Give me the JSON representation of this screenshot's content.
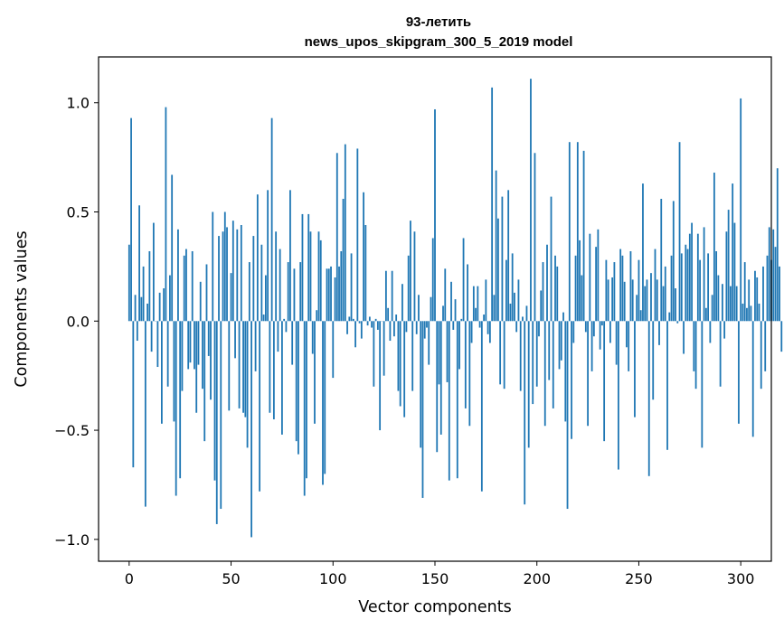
{
  "chart_data": {
    "type": "bar",
    "title_line1": "93-летить",
    "title_line2": "news_upos_skipgram_300_5_2019 model",
    "xlabel": "Vector components",
    "ylabel": "Components values",
    "xlim": [
      -15,
      315
    ],
    "ylim": [
      -1.1,
      1.21
    ],
    "xticks": [
      0,
      50,
      100,
      150,
      200,
      250,
      300
    ],
    "yticks": [
      -1.0,
      -0.5,
      0.0,
      0.5,
      1.0
    ],
    "ytick_labels": [
      "−1.0",
      "−0.5",
      "0.0",
      "0.5",
      "1.0"
    ],
    "bar_color": "#1f77b4",
    "grid": false,
    "values": [
      0.35,
      0.93,
      -0.67,
      0.12,
      -0.09,
      0.53,
      0.11,
      0.25,
      -0.85,
      0.08,
      0.32,
      -0.14,
      0.45,
      0.0,
      -0.21,
      0.13,
      -0.47,
      0.15,
      0.98,
      -0.3,
      0.21,
      0.67,
      -0.46,
      -0.8,
      0.42,
      -0.72,
      -0.32,
      0.3,
      0.33,
      -0.22,
      -0.19,
      0.32,
      -0.22,
      -0.42,
      -0.2,
      0.18,
      -0.31,
      -0.55,
      0.26,
      -0.16,
      -0.36,
      0.5,
      -0.73,
      -0.93,
      0.39,
      -0.86,
      0.41,
      0.5,
      0.43,
      -0.41,
      0.22,
      0.46,
      -0.17,
      0.42,
      -0.4,
      0.44,
      -0.42,
      -0.44,
      -0.58,
      0.27,
      -0.99,
      0.39,
      -0.23,
      0.58,
      -0.78,
      0.35,
      0.03,
      0.21,
      0.6,
      -0.42,
      0.93,
      -0.45,
      0.41,
      -0.14,
      0.33,
      -0.52,
      0.01,
      -0.05,
      0.27,
      0.6,
      -0.2,
      0.24,
      -0.55,
      -0.61,
      0.27,
      0.49,
      -0.8,
      -0.72,
      0.49,
      0.41,
      -0.15,
      -0.47,
      0.05,
      0.41,
      0.37,
      -0.75,
      -0.7,
      0.24,
      0.24,
      0.25,
      -0.26,
      0.2,
      0.77,
      0.25,
      0.32,
      0.56,
      0.81,
      -0.06,
      0.02,
      0.31,
      0.01,
      -0.12,
      0.79,
      -0.01,
      -0.08,
      0.59,
      0.44,
      -0.02,
      0.02,
      -0.03,
      -0.3,
      0.01,
      -0.04,
      -0.5,
      0.0,
      -0.25,
      0.23,
      0.06,
      -0.09,
      0.23,
      -0.07,
      0.03,
      -0.32,
      -0.39,
      0.17,
      -0.44,
      -0.05,
      0.3,
      0.46,
      -0.32,
      0.41,
      -0.06,
      0.12,
      -0.58,
      -0.81,
      -0.08,
      -0.03,
      -0.2,
      0.11,
      0.38,
      0.97,
      -0.6,
      -0.29,
      -0.52,
      0.07,
      0.24,
      -0.28,
      -0.73,
      0.18,
      -0.04,
      0.1,
      -0.72,
      -0.22,
      0.01,
      0.38,
      -0.4,
      0.26,
      -0.48,
      -0.1,
      0.16,
      0.06,
      0.16,
      -0.03,
      -0.78,
      0.03,
      0.19,
      -0.06,
      -0.1,
      1.07,
      0.12,
      0.69,
      0.47,
      -0.29,
      0.57,
      -0.31,
      0.28,
      0.6,
      0.08,
      0.31,
      0.13,
      -0.05,
      0.19,
      -0.32,
      0.02,
      -0.84,
      0.07,
      -0.58,
      1.11,
      -0.38,
      0.77,
      -0.3,
      -0.07,
      0.14,
      0.27,
      -0.48,
      0.35,
      -0.27,
      0.57,
      -0.4,
      0.3,
      0.25,
      -0.22,
      -0.18,
      0.04,
      -0.46,
      -0.86,
      0.82,
      -0.54,
      -0.1,
      0.3,
      0.82,
      0.37,
      0.21,
      0.78,
      -0.05,
      -0.48,
      0.4,
      -0.23,
      -0.07,
      0.34,
      0.42,
      -0.13,
      -0.02,
      -0.55,
      0.28,
      0.19,
      -0.1,
      0.2,
      0.27,
      -0.2,
      -0.68,
      0.33,
      0.3,
      0.18,
      -0.12,
      -0.23,
      0.32,
      0.19,
      -0.44,
      0.12,
      0.28,
      0.05,
      0.63,
      0.16,
      0.19,
      -0.71,
      0.22,
      -0.36,
      0.33,
      0.19,
      -0.11,
      0.56,
      0.16,
      0.25,
      -0.59,
      0.04,
      0.3,
      0.55,
      0.15,
      -0.01,
      0.82,
      0.31,
      -0.15,
      0.35,
      0.33,
      0.4,
      0.45,
      -0.23,
      -0.31,
      0.4,
      0.28,
      -0.58,
      0.43,
      0.06,
      0.31,
      -0.1,
      0.12,
      0.68,
      0.32,
      0.21,
      -0.3,
      0.17,
      -0.08,
      0.41,
      0.51,
      0.16,
      0.63,
      0.45,
      0.16,
      -0.47,
      1.02,
      0.08,
      0.27,
      0.06,
      0.19,
      0.07,
      -0.53,
      0.23,
      0.2,
      0.08,
      -0.31,
      0.25,
      -0.23,
      0.3,
      0.43,
      0.28,
      0.42,
      0.34,
      0.7,
      0.25,
      -0.14
    ]
  }
}
